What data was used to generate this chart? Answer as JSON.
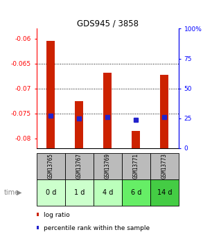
{
  "title": "GDS945 / 3858",
  "categories": [
    "GSM13765",
    "GSM13767",
    "GSM13769",
    "GSM13771",
    "GSM13773"
  ],
  "time_labels": [
    "0 d",
    "1 d",
    "4 d",
    "6 d",
    "14 d"
  ],
  "log_ratio": [
    -0.0605,
    -0.0725,
    -0.0668,
    -0.0785,
    -0.0672
  ],
  "percentile": [
    27,
    25,
    26,
    24,
    26
  ],
  "ylim_left": [
    -0.082,
    -0.058
  ],
  "ylim_right": [
    0,
    100
  ],
  "yticks_left": [
    -0.08,
    -0.075,
    -0.07,
    -0.065,
    -0.06
  ],
  "yticks_right": [
    0,
    25,
    50,
    75,
    100
  ],
  "bar_color": "#cc2200",
  "dot_color": "#2222cc",
  "bar_bottom": -0.082,
  "time_colors": [
    "#ccffcc",
    "#ccffcc",
    "#bbffbb",
    "#66ee66",
    "#44cc44"
  ],
  "gsm_bg": "#bbbbbb",
  "legend_bar_label": "log ratio",
  "legend_dot_label": "percentile rank within the sample"
}
